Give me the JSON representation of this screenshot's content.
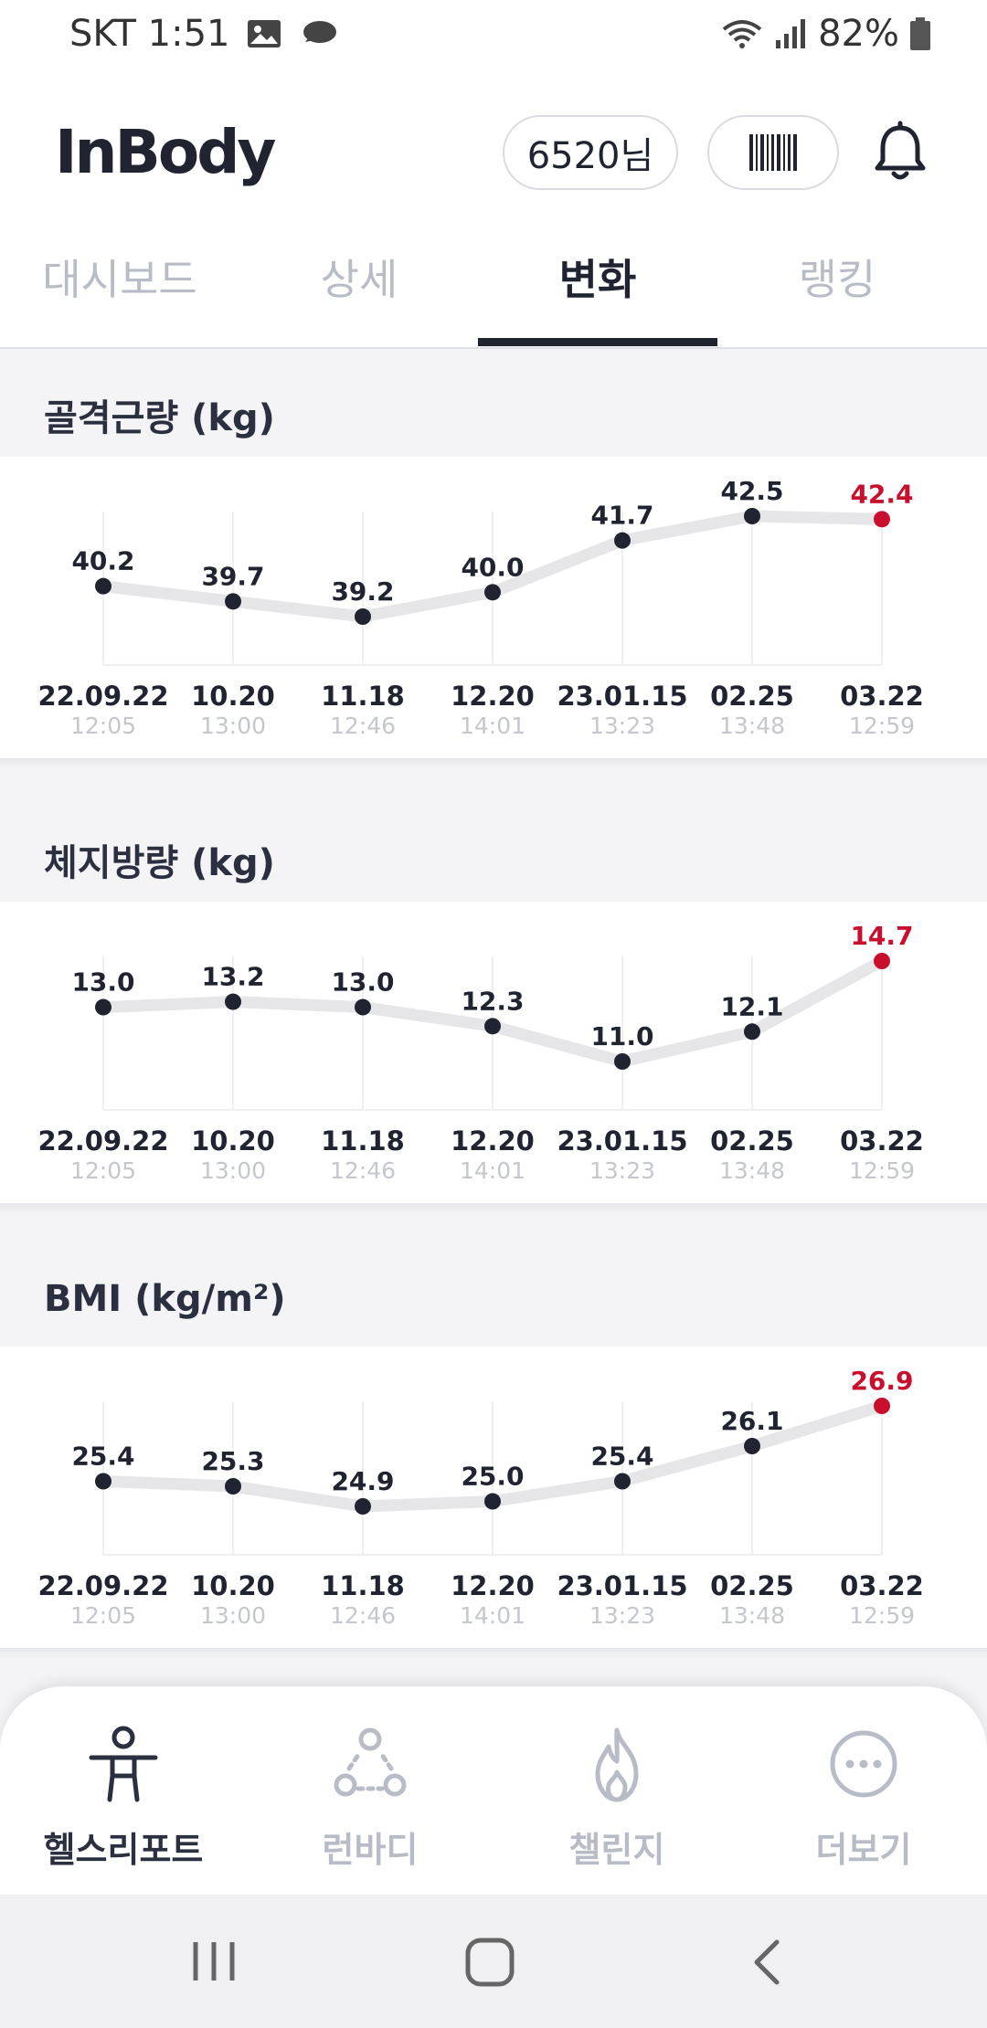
{
  "status_bar": {
    "carrier_time": "SKT 1:51",
    "battery": "82%",
    "icons": [
      "image-icon",
      "cloud-chat-icon",
      "wifi-icon",
      "signal-icon",
      "battery-icon"
    ]
  },
  "header": {
    "logo": "InBody",
    "user": "6520님",
    "barcode_icon": "barcode-icon",
    "bell_icon": "bell-icon"
  },
  "tabs": [
    {
      "label": "대시보드",
      "active": false
    },
    {
      "label": "상세",
      "active": false
    },
    {
      "label": "변화",
      "active": true
    },
    {
      "label": "랭킹",
      "active": false
    }
  ],
  "colors": {
    "accent": "#c8102e",
    "point": "#1f2430",
    "line": "#e6e6e8"
  },
  "sections": [
    {
      "title": "골격근량 (kg)"
    },
    {
      "title": "체지방량 (kg)"
    },
    {
      "title": "BMI (kg/m²)"
    }
  ],
  "chart_data": [
    {
      "type": "line",
      "title": "골격근량 (kg)",
      "x": [
        "22.09.22",
        "10.20",
        "11.18",
        "12.20",
        "23.01.15",
        "02.25",
        "03.22"
      ],
      "times": [
        "12:05",
        "13:00",
        "12:46",
        "14:01",
        "13:23",
        "13:48",
        "12:59"
      ],
      "series": [
        {
          "values": [
            40.2,
            39.7,
            39.2,
            40.0,
            41.7,
            42.5,
            42.4
          ]
        }
      ],
      "highlight_last": true
    },
    {
      "type": "line",
      "title": "체지방량 (kg)",
      "x": [
        "22.09.22",
        "10.20",
        "11.18",
        "12.20",
        "23.01.15",
        "02.25",
        "03.22"
      ],
      "times": [
        "12:05",
        "13:00",
        "12:46",
        "14:01",
        "13:23",
        "13:48",
        "12:59"
      ],
      "series": [
        {
          "values": [
            13.0,
            13.2,
            13.0,
            12.3,
            11.0,
            12.1,
            14.7
          ]
        }
      ],
      "highlight_last": true
    },
    {
      "type": "line",
      "title": "BMI (kg/m²)",
      "x": [
        "22.09.22",
        "10.20",
        "11.18",
        "12.20",
        "23.01.15",
        "02.25",
        "03.22"
      ],
      "times": [
        "12:05",
        "13:00",
        "12:46",
        "14:01",
        "13:23",
        "13:48",
        "12:59"
      ],
      "series": [
        {
          "values": [
            25.4,
            25.3,
            24.9,
            25.0,
            25.4,
            26.1,
            26.9
          ]
        }
      ],
      "highlight_last": true
    }
  ],
  "bottom_nav": [
    {
      "label": "헬스리포트",
      "icon": "person-icon",
      "active": true
    },
    {
      "label": "런바디",
      "icon": "group-icon",
      "active": false
    },
    {
      "label": "챌린지",
      "icon": "flame-icon",
      "active": false
    },
    {
      "label": "더보기",
      "icon": "more-icon",
      "active": false
    }
  ],
  "system_nav": [
    "recent-apps-icon",
    "home-icon",
    "back-icon"
  ]
}
